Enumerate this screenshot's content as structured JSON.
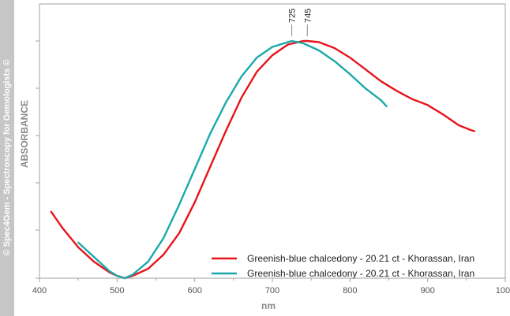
{
  "watermark": "© Spec4Gem - Spectroscopy for Gemologists ©",
  "colors": {
    "background": "#ffffff",
    "sidebar": "#c6c6c6",
    "axis": "#a0a0a0"
  },
  "chart_data": {
    "type": "line",
    "xlabel": "nm",
    "ylabel": "ABSORBANCE",
    "xlim": [
      400,
      1000
    ],
    "ylim": [
      0,
      1
    ],
    "x_ticks": [
      "400",
      "500",
      "600",
      "700",
      "800",
      "900",
      "1000"
    ],
    "grid": false,
    "legend_position": "bottom-right",
    "peak_labels": [
      "725",
      "745"
    ],
    "peaks": [
      725,
      745
    ],
    "series": [
      {
        "name": "Greenish-blue chalcedony - 20.21 ct - Khorassan, Iran",
        "color": "#e8141c",
        "x": [
          415,
          430,
          450,
          470,
          490,
          500,
          510,
          520,
          540,
          560,
          580,
          600,
          620,
          640,
          660,
          680,
          700,
          720,
          740,
          745,
          760,
          780,
          800,
          820,
          840,
          860,
          880,
          900,
          920,
          940,
          955,
          960
        ],
        "y": [
          0.28,
          0.21,
          0.13,
          0.07,
          0.025,
          0.01,
          0.0,
          0.01,
          0.04,
          0.1,
          0.19,
          0.32,
          0.47,
          0.62,
          0.76,
          0.87,
          0.94,
          0.985,
          1.0,
          1.0,
          0.995,
          0.97,
          0.93,
          0.88,
          0.83,
          0.79,
          0.755,
          0.73,
          0.69,
          0.645,
          0.625,
          0.62
        ]
      },
      {
        "name": "Greenish-blue chalcedony - 20.21 ct - Khorassan, Iran",
        "color": "#1aa9a9",
        "x": [
          450,
          460,
          470,
          480,
          490,
          500,
          510,
          520,
          540,
          560,
          580,
          600,
          620,
          640,
          660,
          680,
          700,
          720,
          725,
          740,
          760,
          780,
          800,
          810,
          820,
          830,
          840,
          847
        ],
        "y": [
          0.15,
          0.12,
          0.09,
          0.06,
          0.03,
          0.01,
          0.0,
          0.015,
          0.07,
          0.17,
          0.31,
          0.46,
          0.61,
          0.74,
          0.85,
          0.93,
          0.975,
          0.995,
          1.0,
          0.99,
          0.96,
          0.915,
          0.86,
          0.83,
          0.8,
          0.775,
          0.75,
          0.725
        ]
      }
    ]
  }
}
